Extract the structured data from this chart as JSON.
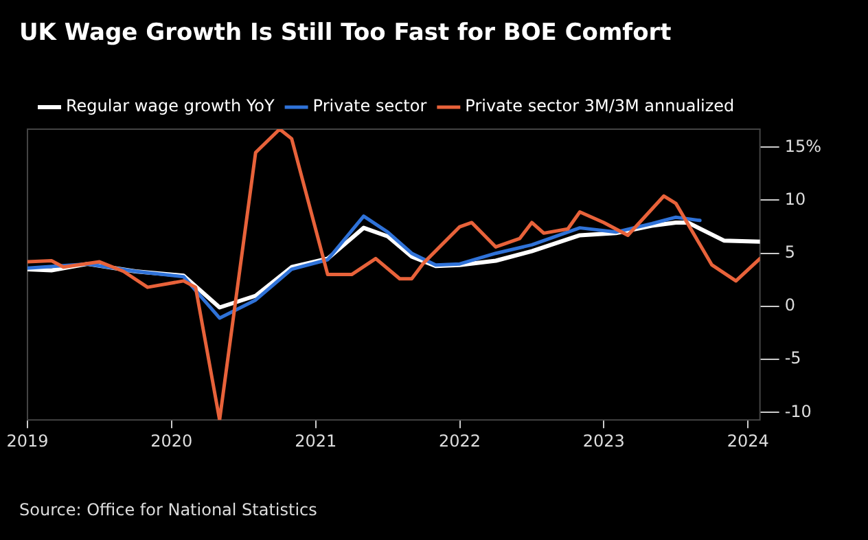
{
  "chart_data": {
    "type": "line",
    "title": "UK Wage Growth Is Still Too Fast for BOE Comfort",
    "annotations": [
      "Source: Office for National Statistics"
    ],
    "legend": "top left",
    "grid": false,
    "marker": "none",
    "line_style": "solid",
    "xlim": [
      "2019-01",
      "2024-02"
    ],
    "xticks": [
      "2019",
      "2020",
      "2021",
      "2022",
      "2023",
      "2024"
    ],
    "ylim": [
      -10.7,
      16.7
    ],
    "yticks": [
      {
        "value": 15,
        "label": "15%"
      },
      10,
      5,
      0,
      -5,
      -10
    ],
    "series": [
      {
        "name": "Private sector 3M/3M annualized",
        "color": "#e8623a",
        "x": [
          "2019-01",
          "2019-03",
          "2019-04",
          "2019-07",
          "2019-09",
          "2019-11",
          "2020-02",
          "2020-03",
          "2020-05",
          "2020-08",
          "2020-10",
          "2020-11",
          "2021-02",
          "2021-04",
          "2021-06",
          "2021-08",
          "2021-09",
          "2021-10",
          "2022-01",
          "2022-02",
          "2022-04",
          "2022-06",
          "2022-07",
          "2022-08",
          "2022-10",
          "2022-11",
          "2023-01",
          "2023-03",
          "2023-06",
          "2023-07",
          "2023-10",
          "2023-12",
          "2024-02"
        ],
        "values": [
          4.2,
          4.3,
          3.7,
          4.2,
          3.3,
          1.8,
          2.4,
          1.8,
          -10.7,
          14.5,
          16.7,
          15.8,
          3.0,
          3.0,
          4.5,
          2.6,
          2.6,
          4.1,
          7.5,
          7.9,
          5.6,
          6.4,
          7.9,
          6.9,
          7.3,
          8.9,
          7.9,
          6.7,
          10.4,
          9.7,
          3.9,
          2.4,
          4.5
        ]
      },
      {
        "name": "Private sector",
        "color": "#2f72d8",
        "x": [
          "2019-01",
          "2019-06",
          "2019-10",
          "2020-02",
          "2020-05",
          "2020-08",
          "2020-11",
          "2021-02",
          "2021-05",
          "2021-07",
          "2021-09",
          "2021-11",
          "2022-01",
          "2022-04",
          "2022-07",
          "2022-11",
          "2023-02",
          "2023-05",
          "2023-07",
          "2023-09"
        ],
        "values": [
          3.6,
          4.0,
          3.3,
          2.8,
          -1.1,
          0.6,
          3.5,
          4.4,
          8.5,
          7.0,
          5.0,
          3.9,
          4.0,
          5.0,
          5.8,
          7.4,
          7.0,
          7.8,
          8.4,
          8.1
        ]
      },
      {
        "name": "Regular wage growth YoY",
        "color": "#ffffff",
        "x": [
          "2019-01",
          "2019-03",
          "2019-06",
          "2019-10",
          "2020-02",
          "2020-05",
          "2020-08",
          "2020-11",
          "2021-02",
          "2021-05",
          "2021-07",
          "2021-09",
          "2021-11",
          "2022-01",
          "2022-04",
          "2022-07",
          "2022-11",
          "2023-02",
          "2023-05",
          "2023-07",
          "2023-08",
          "2023-11",
          "2024-02"
        ],
        "values": [
          3.5,
          3.4,
          4.0,
          3.3,
          2.9,
          -0.1,
          1.0,
          3.7,
          4.5,
          7.4,
          6.6,
          4.7,
          3.8,
          3.9,
          4.3,
          5.2,
          6.7,
          6.9,
          7.6,
          7.9,
          7.9,
          6.2,
          6.1
        ]
      }
    ]
  }
}
